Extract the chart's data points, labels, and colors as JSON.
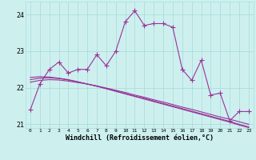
{
  "title": "",
  "xlabel": "Windchill (Refroidissement éolien,°C)",
  "ylabel": "",
  "bg_color": "#cdf0ef",
  "grid_color": "#aadddd",
  "line_color": "#993399",
  "x": [
    0,
    1,
    2,
    3,
    4,
    5,
    6,
    7,
    8,
    9,
    10,
    11,
    12,
    13,
    14,
    15,
    16,
    17,
    18,
    19,
    20,
    21,
    22,
    23
  ],
  "y_main": [
    21.4,
    22.1,
    22.5,
    22.7,
    22.4,
    22.5,
    22.5,
    22.9,
    22.6,
    23.0,
    23.8,
    24.1,
    23.7,
    23.75,
    23.75,
    23.65,
    22.5,
    22.2,
    22.75,
    21.8,
    21.85,
    21.1,
    21.35,
    21.35
  ],
  "y_reg1": [
    22.15,
    22.2,
    22.22,
    22.21,
    22.18,
    22.14,
    22.1,
    22.05,
    21.99,
    21.93,
    21.87,
    21.8,
    21.74,
    21.67,
    21.61,
    21.54,
    21.47,
    21.41,
    21.34,
    21.27,
    21.2,
    21.14,
    21.07,
    21.0
  ],
  "y_reg2": [
    22.22,
    22.26,
    22.27,
    22.25,
    22.21,
    22.16,
    22.1,
    22.04,
    21.98,
    21.91,
    21.84,
    21.77,
    21.71,
    21.64,
    21.57,
    21.5,
    21.43,
    21.36,
    21.29,
    21.22,
    21.15,
    21.08,
    21.0,
    20.93
  ],
  "y_reg3": [
    22.28,
    22.3,
    22.29,
    22.26,
    22.22,
    22.16,
    22.1,
    22.04,
    21.97,
    21.9,
    21.83,
    21.76,
    21.69,
    21.62,
    21.55,
    21.48,
    21.41,
    21.34,
    21.27,
    21.2,
    21.13,
    21.06,
    20.98,
    20.91
  ],
  "ylim": [
    20.9,
    24.35
  ],
  "yticks": [
    21,
    22,
    23,
    24
  ],
  "marker": "+",
  "markersize": 4,
  "linewidth": 0.8
}
